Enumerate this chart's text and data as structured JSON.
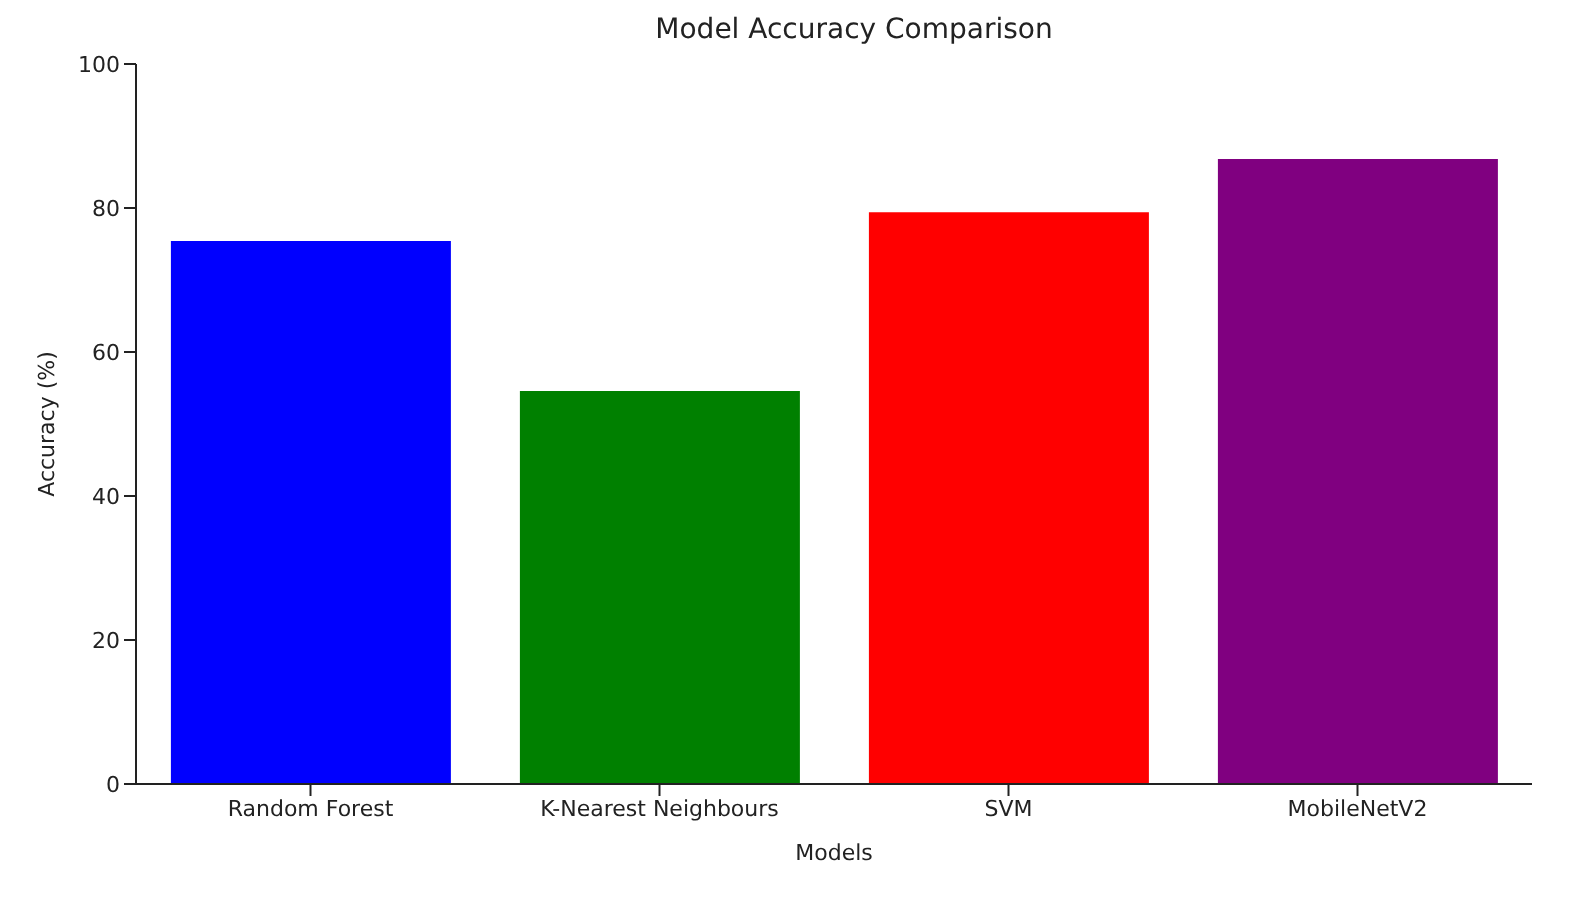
{
  "chart_data": {
    "type": "bar",
    "title": "Model Accuracy Comparison",
    "xlabel": "Models",
    "ylabel": "Accuracy (%)",
    "categories": [
      "Random Forest",
      "K-Nearest Neighbours",
      "SVM",
      "MobileNetV2"
    ],
    "values": [
      75.4,
      54.6,
      79.4,
      86.8
    ],
    "colors": [
      "#0000ff",
      "#008000",
      "#ff0000",
      "#800080"
    ],
    "ylim": [
      0,
      100
    ],
    "yticks": [
      0,
      20,
      40,
      60,
      80,
      100
    ],
    "grid": false,
    "legend": false
  }
}
